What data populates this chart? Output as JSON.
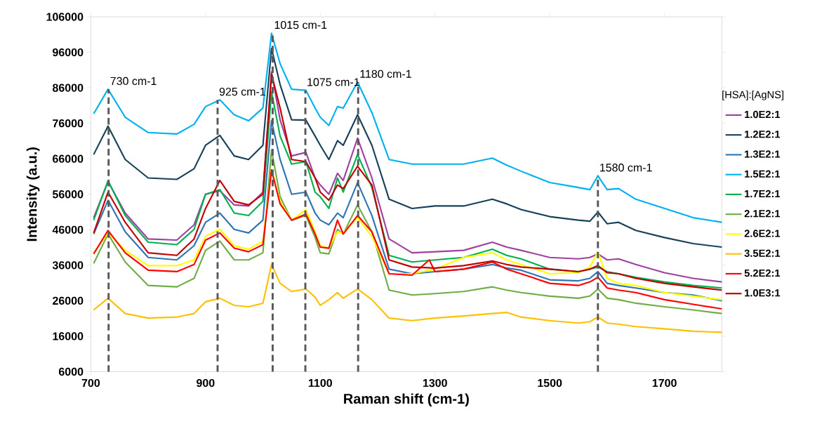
{
  "chart_data": {
    "type": "line",
    "xlabel": "Raman shift (cm-1)",
    "ylabel": "Intensity (a.u.)",
    "legend_title": "[HSA]:[AgNS]",
    "xlim": [
      700,
      1800
    ],
    "xticks": [
      700,
      900,
      1100,
      1300,
      1500,
      1700
    ],
    "ylim": [
      6000,
      106000
    ],
    "yticks": [
      6000,
      16000,
      26000,
      36000,
      46000,
      56000,
      66000,
      76000,
      86000,
      96000,
      106000
    ],
    "legend": "right",
    "marker": "none",
    "x": [
      705,
      730,
      760,
      800,
      850,
      880,
      900,
      925,
      950,
      975,
      1000,
      1015,
      1030,
      1050,
      1075,
      1091,
      1100,
      1115,
      1130,
      1140,
      1165,
      1190,
      1220,
      1260,
      1300,
      1350,
      1400,
      1425,
      1450,
      1500,
      1550,
      1570,
      1584,
      1600,
      1620,
      1650,
      1700,
      1750,
      1800
    ],
    "series": [
      {
        "name": "1.0E2:1",
        "color": "#a040a0",
        "values": [
          49400,
          59600,
          50700,
          43400,
          43100,
          47400,
          56000,
          57000,
          53000,
          52700,
          56600,
          90500,
          77000,
          66800,
          67800,
          60600,
          58600,
          56000,
          61900,
          59900,
          71800,
          60600,
          43400,
          39500,
          39800,
          40200,
          42500,
          41100,
          40200,
          38200,
          37800,
          38200,
          39200,
          37500,
          37800,
          36200,
          33900,
          32300,
          31300
        ]
      },
      {
        "name": "1.2E2:1",
        "color": "#17415a",
        "values": [
          67200,
          75200,
          65800,
          60600,
          60200,
          63200,
          69800,
          72600,
          66800,
          65800,
          69800,
          97100,
          86900,
          77000,
          76900,
          72400,
          69800,
          65800,
          71100,
          69800,
          78400,
          69800,
          54600,
          52000,
          52700,
          52700,
          54600,
          53300,
          51700,
          49700,
          48700,
          48400,
          51000,
          47700,
          48100,
          45800,
          43800,
          42100,
          41100
        ]
      },
      {
        "name": "1.3E2:1",
        "color": "#2e75b6",
        "values": [
          44800,
          54300,
          45400,
          38200,
          37500,
          41500,
          48100,
          50700,
          46100,
          45100,
          48700,
          76700,
          65800,
          56000,
          56600,
          50700,
          48700,
          47400,
          50700,
          49400,
          59300,
          50000,
          34900,
          33600,
          34200,
          34900,
          36200,
          35200,
          34600,
          31900,
          31600,
          32300,
          34200,
          30900,
          30300,
          29600,
          28300,
          27600,
          26000
        ]
      },
      {
        "name": "1.5E2:1",
        "color": "#00b0f0",
        "values": [
          78700,
          85600,
          77700,
          73400,
          73000,
          75700,
          80700,
          82600,
          78400,
          76700,
          80300,
          101400,
          92800,
          85600,
          85300,
          80300,
          77700,
          75400,
          80700,
          80300,
          87600,
          79000,
          65800,
          64500,
          64500,
          64500,
          66200,
          64200,
          62500,
          59300,
          57900,
          57300,
          61200,
          57300,
          57600,
          54600,
          52000,
          49400,
          48100
        ]
      },
      {
        "name": "1.7E2:1",
        "color": "#00b050",
        "values": [
          48700,
          59800,
          50000,
          42500,
          41800,
          46100,
          56000,
          57300,
          50700,
          50000,
          54000,
          84900,
          72400,
          64500,
          65200,
          56600,
          55300,
          52000,
          60600,
          56600,
          67200,
          57900,
          38800,
          36900,
          37500,
          38200,
          40500,
          38800,
          37800,
          34900,
          34200,
          34900,
          35500,
          34200,
          33600,
          32600,
          31300,
          30300,
          29600
        ]
      },
      {
        "name": "2.1E2:1",
        "color": "#70ad47",
        "values": [
          36500,
          44800,
          36900,
          30300,
          29900,
          32300,
          40200,
          42800,
          37500,
          37500,
          39500,
          68500,
          55300,
          48700,
          50000,
          43800,
          39500,
          39200,
          46100,
          44800,
          53000,
          45400,
          29000,
          27600,
          28000,
          28600,
          29900,
          29000,
          28300,
          27300,
          26700,
          27300,
          29300,
          26700,
          26300,
          25300,
          24300,
          23400,
          22400
        ]
      },
      {
        "name": "2.6E2:1",
        "color": "#ffff00",
        "values": [
          39500,
          45100,
          40200,
          35900,
          35900,
          37500,
          44100,
          46200,
          41500,
          40500,
          42800,
          62900,
          54000,
          48700,
          51700,
          45400,
          41500,
          40800,
          45400,
          45100,
          49400,
          44100,
          33600,
          33600,
          34900,
          38200,
          39500,
          37500,
          36200,
          33600,
          33900,
          35500,
          39800,
          32300,
          30900,
          30300,
          28300,
          27300,
          26300
        ]
      },
      {
        "name": "3.5E2:1",
        "color": "#ffc000",
        "values": [
          23400,
          26700,
          22400,
          21100,
          21400,
          22400,
          25700,
          26700,
          24700,
          24300,
          25300,
          36200,
          30900,
          28600,
          29300,
          27000,
          24700,
          26300,
          28300,
          26700,
          29300,
          26300,
          21100,
          20400,
          21100,
          21700,
          22400,
          22700,
          21400,
          20400,
          19700,
          20100,
          21400,
          19700,
          19400,
          18700,
          18100,
          17400,
          17100
        ]
      },
      {
        "name": "5.2E2:1",
        "color": "#ff0000",
        "x": [
          705,
          730,
          760,
          800,
          850,
          880,
          900,
          925,
          950,
          975,
          1000,
          1015,
          1030,
          1050,
          1075,
          1091,
          1100,
          1115,
          1130,
          1140,
          1165,
          1190,
          1220,
          1260,
          1290,
          1300,
          1350,
          1400,
          1425,
          1450,
          1500,
          1550,
          1570,
          1584,
          1600,
          1620,
          1650,
          1700,
          1750,
          1800
        ],
        "values": [
          39200,
          45800,
          39500,
          34600,
          34200,
          36200,
          43100,
          45100,
          40800,
          39800,
          41800,
          62900,
          53300,
          48700,
          50400,
          44800,
          41100,
          40800,
          48700,
          44800,
          50000,
          45400,
          33600,
          33200,
          37500,
          34200,
          34900,
          36900,
          34900,
          33600,
          30900,
          30300,
          31300,
          32600,
          29600,
          29000,
          28300,
          26300,
          25000,
          23700
        ]
      },
      {
        "name": "1.0E3:1",
        "color": "#c00000",
        "values": [
          45100,
          56600,
          48100,
          39500,
          38800,
          43400,
          52000,
          59900,
          54000,
          53000,
          56000,
          89900,
          80300,
          65800,
          65200,
          60600,
          56600,
          54300,
          58600,
          57600,
          63900,
          58600,
          37500,
          35500,
          35200,
          35900,
          37200,
          36200,
          35500,
          34900,
          34200,
          34900,
          35900,
          33900,
          33600,
          32300,
          30900,
          29900,
          29000
        ]
      }
    ],
    "ref_lines": [
      {
        "axis": "x",
        "value": 731,
        "label": "730 cm-1",
        "color": "#595959",
        "line_style": "dashed"
      },
      {
        "axis": "x",
        "value": 921,
        "label": "925 cm-1",
        "color": "#595959",
        "line_style": "dashed"
      },
      {
        "axis": "x",
        "value": 1017,
        "label": "1015 cm-1",
        "color": "#595959",
        "line_style": "dashed"
      },
      {
        "axis": "x",
        "value": 1074,
        "label": "1075 cm-1",
        "color": "#595959",
        "line_style": "dashed"
      },
      {
        "axis": "x",
        "value": 1166,
        "label": "1180 cm-1",
        "color": "#595959",
        "line_style": "dashed"
      },
      {
        "axis": "x",
        "value": 1584,
        "label": "1580 cm-1",
        "color": "#595959",
        "line_style": "dashed"
      }
    ]
  }
}
